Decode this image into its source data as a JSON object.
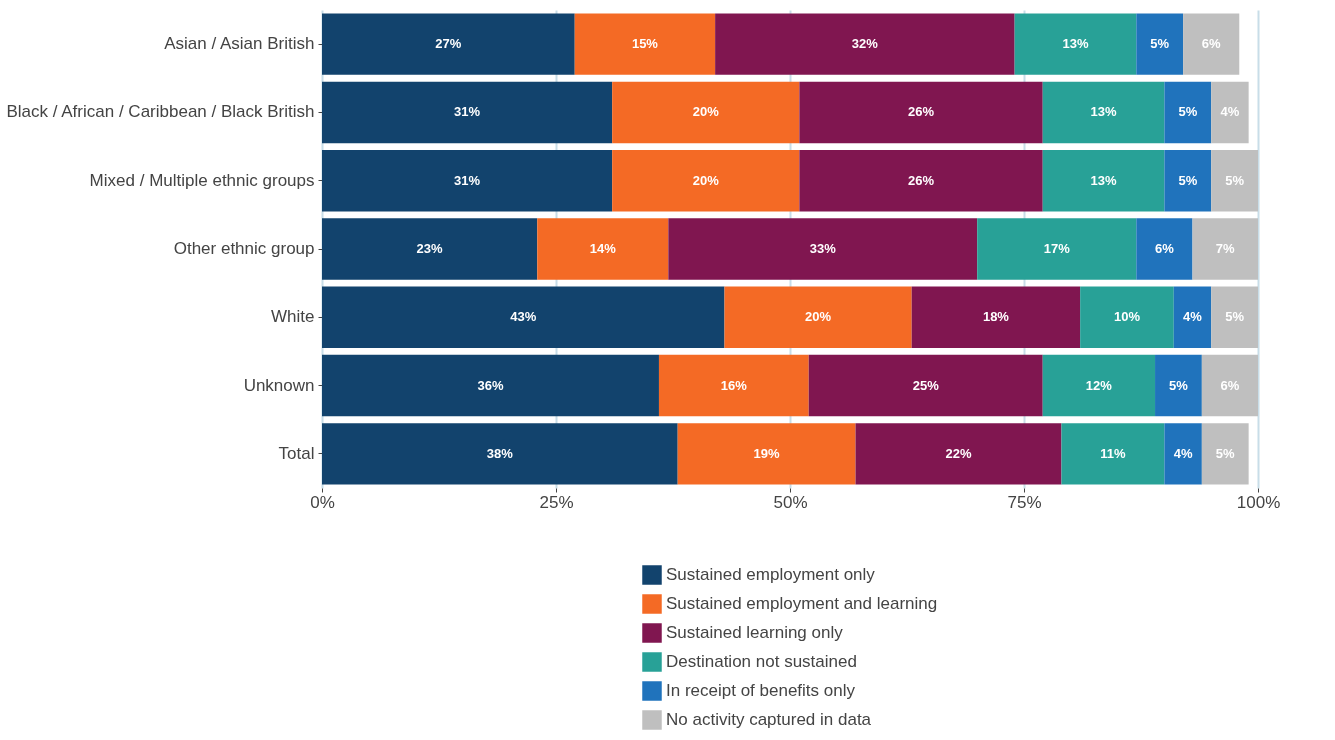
{
  "chart_data": {
    "type": "bar",
    "orientation": "horizontal",
    "stacked": true,
    "grid": "x",
    "legend": "bottom",
    "categories": [
      "Asian / Asian British",
      "Black / African / Caribbean / Black British",
      "Mixed / Multiple ethnic groups",
      "Other ethnic group",
      "White",
      "Unknown",
      "Total"
    ],
    "xlim": [
      0,
      100
    ],
    "xticks": [
      {
        "value": 0,
        "label": "0%"
      },
      {
        "value": 25,
        "label": "25%"
      },
      {
        "value": 50,
        "label": "50%"
      },
      {
        "value": 75,
        "label": "75%"
      },
      {
        "value": 100,
        "label": "100%"
      }
    ],
    "series": [
      {
        "name": "Sustained employment only",
        "color": "#12436d",
        "values": [
          27,
          31,
          31,
          23,
          43,
          36,
          38
        ],
        "value_labels": [
          "27%",
          "31%",
          "31%",
          "23%",
          "43%",
          "36%",
          "38%"
        ]
      },
      {
        "name": "Sustained employment and learning",
        "color": "#f46a25",
        "values": [
          15,
          20,
          20,
          14,
          20,
          16,
          19
        ],
        "value_labels": [
          "15%",
          "20%",
          "20%",
          "14%",
          "20%",
          "16%",
          "19%"
        ]
      },
      {
        "name": "Sustained learning only",
        "color": "#801650",
        "values": [
          32,
          26,
          26,
          33,
          18,
          25,
          22
        ],
        "value_labels": [
          "32%",
          "26%",
          "26%",
          "33%",
          "18%",
          "25%",
          "22%"
        ]
      },
      {
        "name": "Destination not sustained",
        "color": "#28a197",
        "values": [
          13,
          13,
          13,
          17,
          10,
          12,
          11
        ],
        "value_labels": [
          "13%",
          "13%",
          "13%",
          "17%",
          "10%",
          "12%",
          "11%"
        ]
      },
      {
        "name": "In receipt of benefits only",
        "color": "#2073bc",
        "values": [
          5,
          5,
          5,
          6,
          4,
          5,
          4
        ],
        "value_labels": [
          "5%",
          "5%",
          "5%",
          "6%",
          "4%",
          "5%",
          "4%"
        ]
      },
      {
        "name": "No activity captured in data",
        "color": "#bfbfbf",
        "values": [
          6,
          4,
          5,
          7,
          5,
          6,
          5
        ],
        "value_labels": [
          "6%",
          "4%",
          "5%",
          "7%",
          "5%",
          "6%",
          "5%"
        ]
      }
    ]
  }
}
